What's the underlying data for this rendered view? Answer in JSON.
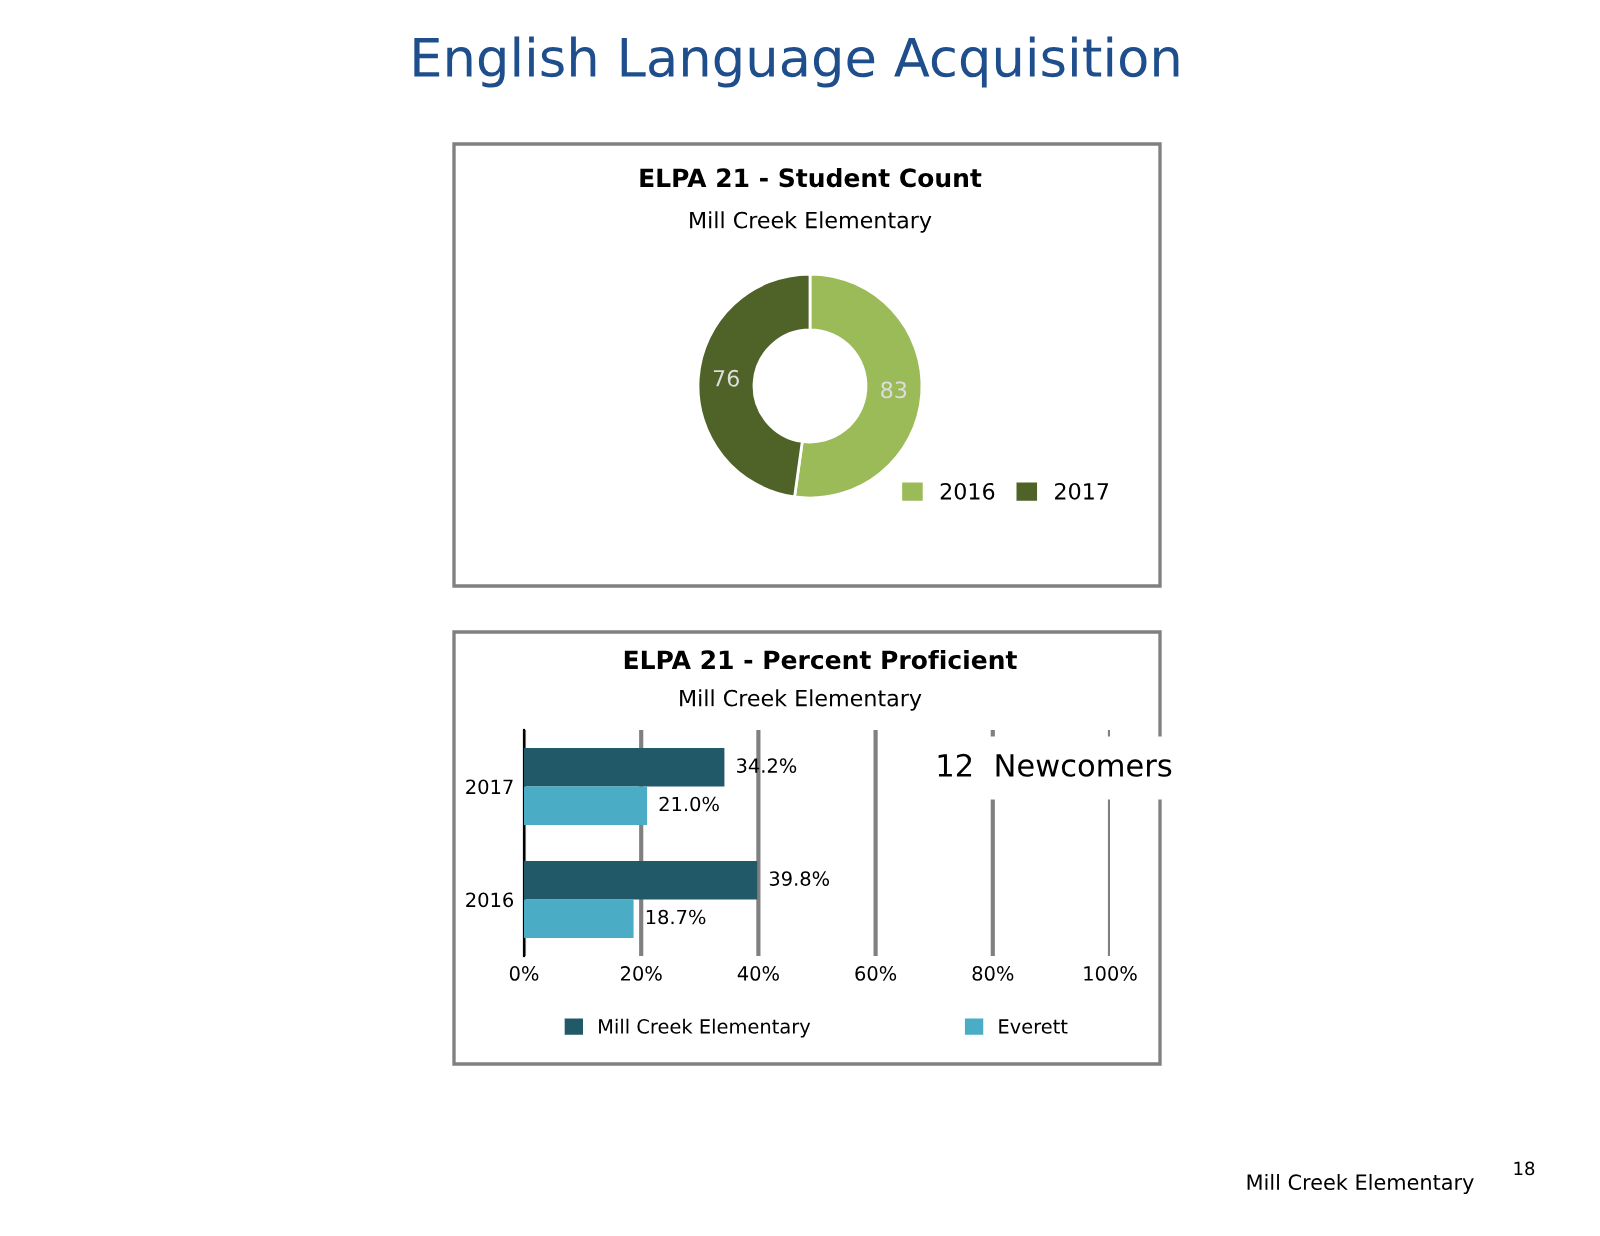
{
  "chart_data": [
    {
      "type": "donut",
      "title": "ELPA 21 - Student Count",
      "subtitle": "Mill Creek Elementary",
      "annotations": [
        "English Language Acquisition"
      ],
      "categories": [
        "2016",
        "2017"
      ],
      "values": [
        83,
        76
      ],
      "colors": [
        "#9bbb59",
        "#4f6228"
      ],
      "data_labels": true,
      "legend": "bottom right"
    },
    {
      "type": "bar",
      "orientation": "horizontal",
      "title": "ELPA 21 - Percent Proficient",
      "subtitle": "Mill Creek Elementary",
      "annotations": [
        "12  Newcomers",
        "Mill Creek Elementary",
        "18"
      ],
      "categories": [
        "2017",
        "2016"
      ],
      "series": [
        {
          "name": "Mill Creek Elementary",
          "color": "#215968",
          "values": [
            34.2,
            39.8
          ],
          "value_labels": [
            "34.2%",
            "39.8%"
          ]
        },
        {
          "name": "Everett",
          "color": "#4bacc6",
          "values": [
            21.0,
            18.7
          ],
          "value_labels": [
            "21.0%",
            "18.7%"
          ]
        }
      ],
      "xlim": [
        0,
        100
      ],
      "xticks": [
        {
          "value": 0,
          "label": "0%"
        },
        {
          "value": 20,
          "label": "20%"
        },
        {
          "value": 40,
          "label": "40%"
        },
        {
          "value": 60,
          "label": "60%"
        },
        {
          "value": 80,
          "label": "80%"
        },
        {
          "value": 100,
          "label": "100%"
        }
      ],
      "grid": "x",
      "legend": "bottom"
    }
  ]
}
